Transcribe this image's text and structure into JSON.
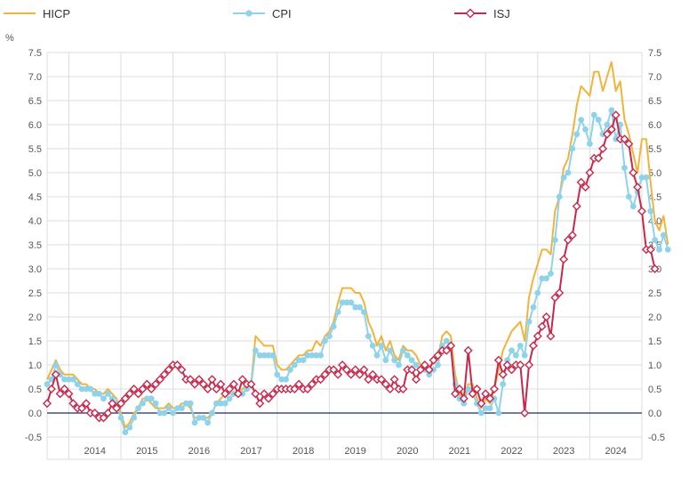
{
  "chart_data": {
    "type": "line",
    "title": "",
    "unit_label": "%",
    "xlabel": "",
    "ylabel": "",
    "ylim": [
      -0.5,
      7.5
    ],
    "y_ticks": [
      "-0.5",
      "0.0",
      "0.5",
      "1.0",
      "1.5",
      "2.0",
      "2.5",
      "3.0",
      "3.5",
      "4.0",
      "4.5",
      "5.0",
      "5.5",
      "6.0",
      "6.5",
      "7.0",
      "7.5"
    ],
    "x_start": "2013-08",
    "x_end": "2024-12",
    "x_years": [
      "2014",
      "2015",
      "2016",
      "2017",
      "2018",
      "2019",
      "2020",
      "2021",
      "2022",
      "2023",
      "2024"
    ],
    "grid": true,
    "legend_position": "top",
    "colors": {
      "HICP": "#f0b43c",
      "CPI": "#8fd3ea",
      "ISJ": "#c8284b",
      "zero_line": "#1f2a6b",
      "grid": "#dcdcdc"
    },
    "series": [
      {
        "name": "HICP",
        "start": "2013-08",
        "values": [
          0.7,
          0.9,
          1.1,
          0.9,
          0.8,
          0.8,
          0.8,
          0.7,
          0.6,
          0.6,
          0.5,
          0.5,
          0.4,
          0.4,
          0.5,
          0.4,
          0.3,
          0.0,
          -0.3,
          -0.2,
          0.0,
          0.1,
          0.3,
          0.3,
          0.2,
          0.1,
          0.1,
          0.1,
          0.2,
          0.1,
          0.1,
          0.2,
          0.2,
          0.1,
          -0.1,
          -0.1,
          -0.1,
          -0.1,
          0.0,
          0.2,
          0.3,
          0.4,
          0.4,
          0.4,
          0.4,
          0.5,
          0.6,
          0.6,
          1.6,
          1.5,
          1.4,
          1.4,
          1.4,
          1.0,
          0.9,
          0.9,
          1.0,
          1.1,
          1.2,
          1.2,
          1.3,
          1.3,
          1.5,
          1.4,
          1.6,
          1.7,
          1.9,
          2.3,
          2.6,
          2.6,
          2.6,
          2.5,
          2.5,
          2.3,
          1.9,
          1.7,
          1.4,
          1.6,
          1.3,
          1.5,
          1.2,
          1.1,
          1.4,
          1.3,
          1.3,
          1.2,
          1.0,
          1.0,
          0.9,
          1.1,
          1.1,
          1.6,
          1.7,
          1.6,
          0.8,
          0.4,
          0.3,
          0.6,
          0.6,
          0.3,
          0.1,
          0.3,
          0.2,
          0.5,
          0.9,
          1.3,
          1.5,
          1.7,
          1.8,
          1.9,
          1.5,
          2.4,
          2.8,
          3.1,
          3.4,
          3.4,
          3.3,
          4.2,
          4.5,
          5.1,
          5.3,
          5.8,
          6.4,
          6.8,
          6.7,
          6.6,
          7.1,
          7.1,
          6.7,
          7.0,
          7.3,
          6.7,
          6.9,
          6.1,
          5.8,
          5.4,
          5.0,
          5.7,
          5.7,
          4.8,
          4.0,
          3.8,
          4.1,
          3.5
        ]
      },
      {
        "name": "CPI",
        "start": "2013-08",
        "values": [
          0.6,
          0.7,
          1.0,
          0.8,
          0.7,
          0.7,
          0.7,
          0.6,
          0.5,
          0.5,
          0.5,
          0.4,
          0.4,
          0.3,
          0.4,
          0.3,
          0.2,
          -0.1,
          -0.4,
          -0.3,
          -0.1,
          0.1,
          0.2,
          0.3,
          0.3,
          0.2,
          0.0,
          0.0,
          0.1,
          0.0,
          0.1,
          0.1,
          0.2,
          0.2,
          -0.2,
          -0.1,
          -0.1,
          -0.2,
          0.0,
          0.2,
          0.2,
          0.2,
          0.3,
          0.4,
          0.4,
          0.4,
          0.5,
          0.6,
          1.3,
          1.2,
          1.2,
          1.2,
          1.2,
          0.8,
          0.7,
          0.7,
          0.9,
          1.0,
          1.1,
          1.1,
          1.2,
          1.2,
          1.2,
          1.2,
          1.5,
          1.6,
          1.8,
          2.1,
          2.3,
          2.3,
          2.3,
          2.2,
          2.2,
          2.1,
          1.6,
          1.4,
          1.2,
          1.4,
          1.1,
          1.3,
          1.1,
          1.0,
          1.3,
          1.2,
          1.1,
          1.0,
          0.9,
          0.9,
          0.8,
          0.9,
          1.0,
          1.4,
          1.5,
          1.4,
          0.6,
          0.3,
          0.2,
          0.5,
          0.4,
          0.2,
          0.0,
          0.1,
          0.1,
          0.3,
          0.0,
          0.6,
          1.1,
          1.3,
          1.2,
          1.4,
          1.2,
          1.9,
          2.2,
          2.5,
          2.8,
          2.8,
          2.9,
          3.6,
          4.5,
          4.9,
          5.0,
          5.5,
          5.8,
          6.1,
          5.9,
          5.6,
          6.2,
          6.1,
          5.8,
          6.0,
          6.3,
          5.7,
          6.0,
          5.1,
          4.5,
          4.3,
          4.6,
          4.9,
          4.9,
          4.2,
          3.6,
          3.4,
          3.7,
          3.4
        ]
      },
      {
        "name": "ISJ",
        "start": "2013-08",
        "values": [
          0.2,
          0.5,
          0.8,
          0.4,
          0.5,
          0.4,
          0.2,
          0.1,
          0.1,
          0.2,
          0.0,
          0.0,
          -0.1,
          -0.1,
          0.0,
          0.2,
          0.1,
          0.2,
          0.3,
          0.4,
          0.5,
          0.4,
          0.5,
          0.6,
          0.5,
          0.6,
          0.7,
          0.8,
          0.9,
          1.0,
          1.0,
          0.9,
          0.7,
          0.7,
          0.6,
          0.7,
          0.6,
          0.5,
          0.7,
          0.5,
          0.6,
          0.4,
          0.5,
          0.6,
          0.4,
          0.7,
          0.6,
          0.6,
          0.4,
          0.2,
          0.4,
          0.3,
          0.4,
          0.5,
          0.5,
          0.5,
          0.5,
          0.5,
          0.6,
          0.5,
          0.5,
          0.6,
          0.7,
          0.7,
          0.8,
          0.9,
          0.9,
          0.8,
          1.0,
          0.9,
          0.8,
          0.9,
          0.8,
          0.9,
          0.7,
          0.8,
          0.7,
          0.7,
          0.6,
          0.5,
          0.7,
          0.5,
          0.5,
          0.9,
          0.9,
          0.7,
          0.9,
          1.0,
          0.9,
          1.1,
          1.2,
          1.3,
          1.3,
          1.4,
          0.4,
          0.5,
          0.3,
          1.3,
          0.4,
          0.5,
          0.2,
          0.4,
          0.3,
          0.5,
          1.1,
          0.8,
          1.0,
          0.9,
          1.0,
          1.0,
          0.0,
          1.0,
          1.4,
          1.6,
          1.8,
          2.0,
          1.6,
          2.4,
          2.5,
          3.2,
          3.6,
          3.7,
          4.3,
          4.8,
          4.7,
          5.0,
          5.3,
          5.3,
          5.5,
          5.8,
          5.9,
          6.2,
          5.7,
          5.7,
          5.6,
          5.0,
          4.7,
          4.2,
          3.4,
          3.4,
          3.0
        ]
      }
    ]
  }
}
